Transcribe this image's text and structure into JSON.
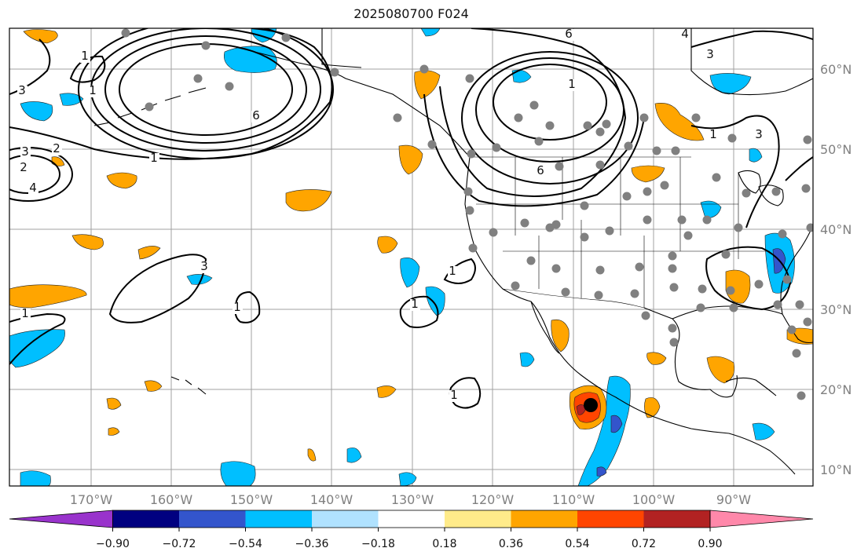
{
  "title": "2025080700 F024",
  "map": {
    "lon_labels": [
      "170°W",
      "160°W",
      "150°W",
      "140°W",
      "130°W",
      "120°W",
      "110°W",
      "100°W",
      "90°W"
    ],
    "lat_labels": [
      "60°N",
      "50°N",
      "40°N",
      "30°N",
      "20°N",
      "10°N"
    ],
    "contour_labels": [
      "1",
      "1",
      "2",
      "3",
      "4",
      "6",
      "1",
      "6",
      "3",
      "4",
      "1",
      "6",
      "3",
      "2",
      "3",
      "1",
      "3",
      "1",
      "1",
      "1",
      "1",
      "1"
    ],
    "station_marker": "gray-dot",
    "storm_marker": "black-dot"
  },
  "colorbar": {
    "tick_labels": [
      "−0.90",
      "−0.72",
      "−0.54",
      "−0.36",
      "−0.18",
      "0.18",
      "0.36",
      "0.54",
      "0.72",
      "0.90"
    ],
    "colors": [
      "#9933cc",
      "#000080",
      "#3355cc",
      "#00bfff",
      "#b0e2ff",
      "#ffffff",
      "#ffeb8a",
      "#ffa500",
      "#ff4500",
      "#b22222",
      "#ff88aa"
    ]
  },
  "colors": {
    "contour": "#000000",
    "grid": "#a0a0a0",
    "axis_label": "#808080",
    "station": "#808080"
  }
}
